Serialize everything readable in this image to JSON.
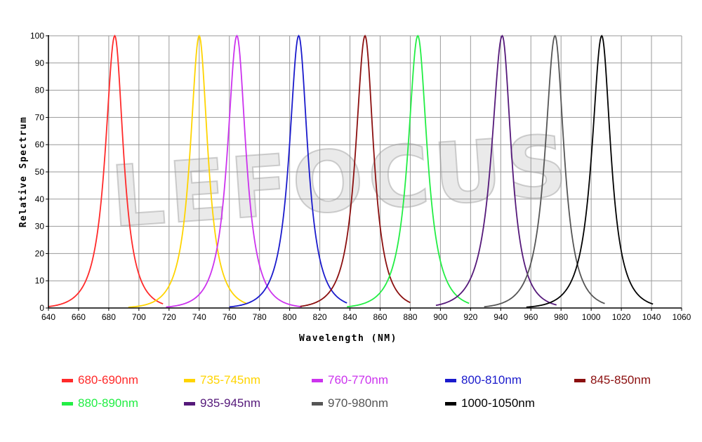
{
  "chart_data": {
    "type": "line",
    "xlabel": "Wavelength (NM)",
    "ylabel": "Relative Spectrum",
    "xlim": [
      640,
      1060
    ],
    "ylim": [
      0,
      100
    ],
    "xticks": [
      640,
      660,
      680,
      700,
      720,
      740,
      760,
      780,
      800,
      820,
      840,
      860,
      880,
      900,
      920,
      940,
      960,
      980,
      1000,
      1020,
      1040,
      1060
    ],
    "yticks": [
      0,
      10,
      20,
      30,
      40,
      50,
      60,
      70,
      80,
      90,
      100
    ],
    "grid": true,
    "watermark": "LEFOCUS",
    "series": [
      {
        "name": "680-690nm",
        "color": "#ff2a2a",
        "peak": 684,
        "width_left": 11.5,
        "width_right": 10.5,
        "range": [
          640,
          716
        ]
      },
      {
        "name": "735-745nm",
        "color": "#ffd400",
        "peak": 740,
        "width_left": 11,
        "width_right": 10.5,
        "range": [
          693,
          772
        ]
      },
      {
        "name": "760-770nm",
        "color": "#cc33ee",
        "peak": 765,
        "width_left": 11.5,
        "width_right": 11,
        "range": [
          718,
          808
        ]
      },
      {
        "name": "800-810nm",
        "color": "#1a1acc",
        "peak": 806,
        "width_left": 11.5,
        "width_right": 11,
        "range": [
          760,
          838
        ]
      },
      {
        "name": "845-850nm",
        "color": "#8b0f0f",
        "peak": 850,
        "width_left": 11.5,
        "width_right": 10.5,
        "range": [
          807,
          880
        ]
      },
      {
        "name": "880-890nm",
        "color": "#22ee44",
        "peak": 885,
        "width_left": 12,
        "width_right": 11.5,
        "range": [
          838,
          919
        ]
      },
      {
        "name": "935-945nm",
        "color": "#55197a",
        "peak": 941,
        "width_left": 13,
        "width_right": 11,
        "range": [
          897,
          977
        ]
      },
      {
        "name": "970-980nm",
        "color": "#555555",
        "peak": 976,
        "width_left": 12,
        "width_right": 11,
        "range": [
          929,
          1009
        ]
      },
      {
        "name": "1000-1050nm",
        "color": "#000000",
        "peak": 1007,
        "width_left": 12,
        "width_right": 11,
        "range": [
          957,
          1041
        ]
      }
    ]
  },
  "legend": [
    {
      "label": "680-690nm",
      "color": "#ff2a2a"
    },
    {
      "label": "735-745nm",
      "color": "#ffd400"
    },
    {
      "label": "760-770nm",
      "color": "#cc33ee"
    },
    {
      "label": "800-810nm",
      "color": "#1a1acc"
    },
    {
      "label": "845-850nm",
      "color": "#8b0f0f"
    },
    {
      "label": "880-890nm",
      "color": "#22ee44"
    },
    {
      "label": "935-945nm",
      "color": "#55197a"
    },
    {
      "label": "970-980nm",
      "color": "#555555"
    },
    {
      "label": "1000-1050nm",
      "color": "#000000"
    }
  ]
}
